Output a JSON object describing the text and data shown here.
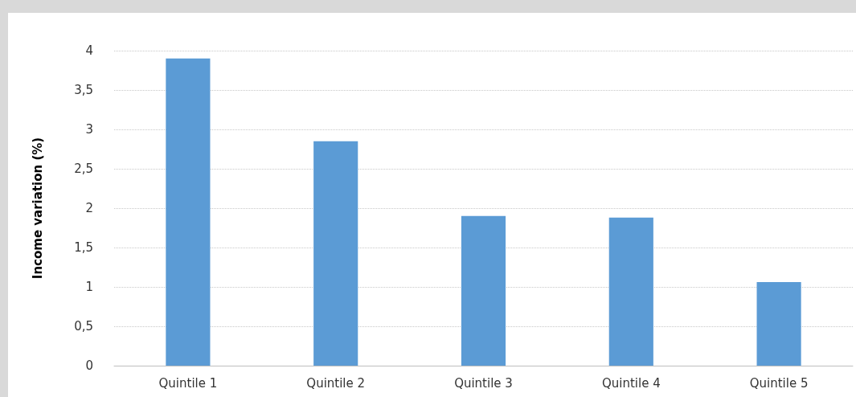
{
  "chart_data": {
    "type": "bar",
    "ylabel": "Income variation (%)",
    "categories": [
      "Quintile 1",
      "Quintile 2",
      "Quintile 3",
      "Quintile 4",
      "Quintile 5"
    ],
    "values": [
      3.9,
      2.85,
      1.9,
      1.88,
      1.06
    ],
    "color": "#5b9bd5",
    "ylim": [
      0,
      4
    ],
    "yticks": [
      0,
      {
        "value": 0.5,
        "label": "0,5"
      },
      1,
      {
        "value": 1.5,
        "label": "1,5"
      },
      2,
      {
        "value": 2.5,
        "label": "2,5"
      },
      3,
      {
        "value": 3.5,
        "label": "3,5"
      },
      4
    ],
    "grid": "y"
  }
}
